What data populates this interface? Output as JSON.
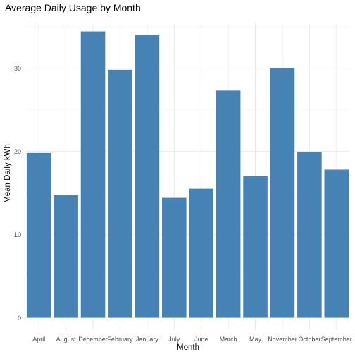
{
  "chart_data": {
    "type": "bar",
    "title": "Average Daily Usage by Month",
    "xlabel": "Month",
    "ylabel": "Mean Daily kWh",
    "categories": [
      "April",
      "August",
      "December",
      "February",
      "January",
      "July",
      "June",
      "March",
      "May",
      "November",
      "October",
      "September"
    ],
    "values": [
      19.8,
      14.7,
      34.4,
      29.8,
      34.0,
      14.4,
      15.5,
      27.3,
      17.0,
      30.0,
      19.9,
      17.8
    ],
    "ylim": [
      0,
      35.5
    ],
    "yticks": [
      0,
      10,
      20,
      30
    ],
    "grid": true,
    "legend": "none",
    "colors": {
      "bar": "#4682b4",
      "grid_major": "#ebebeb",
      "grid_minor": "#f4f4f4",
      "text": "#4d4d4d",
      "title": "#000000"
    }
  }
}
